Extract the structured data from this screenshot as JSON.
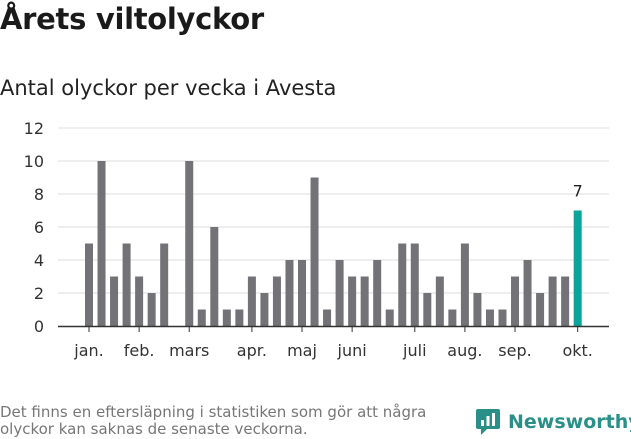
{
  "header": {
    "title": "Årets viltolyckor",
    "subtitle": "Antal olyckor per vecka i Avesta"
  },
  "footer": {
    "note": "Det finns en eftersläpning i statistiken som gör att några olyckor kan saknas de senaste veckorna.",
    "brand": "Newsworthy"
  },
  "colors": {
    "bar": "#737276",
    "highlight": "#0aa59a",
    "grid": "#dddddd",
    "brand": "#2a8f86"
  },
  "chart_data": {
    "type": "bar",
    "title": "",
    "xlabel": "",
    "ylabel": "",
    "ylim": [
      0,
      12
    ],
    "yticks": [
      0,
      2,
      4,
      6,
      8,
      10,
      12
    ],
    "grid": true,
    "weeks": [
      1,
      2,
      3,
      4,
      5,
      6,
      7,
      8,
      9,
      10,
      11,
      12,
      13,
      14,
      15,
      16,
      17,
      18,
      19,
      20,
      21,
      22,
      23,
      24,
      25,
      26,
      27,
      28,
      29,
      30,
      31,
      32,
      33,
      34,
      35,
      36,
      37,
      38,
      39,
      40
    ],
    "values": [
      5,
      10,
      3,
      5,
      3,
      2,
      5,
      0,
      10,
      1,
      6,
      1,
      1,
      3,
      2,
      3,
      4,
      4,
      9,
      1,
      4,
      3,
      3,
      4,
      1,
      5,
      5,
      2,
      3,
      1,
      5,
      2,
      1,
      1,
      3,
      4,
      2,
      3,
      3,
      7
    ],
    "highlight_index": 39,
    "highlight_label": "7",
    "month_labels": [
      {
        "label": "jan.",
        "week": 1
      },
      {
        "label": "feb.",
        "week": 5
      },
      {
        "label": "mars",
        "week": 9
      },
      {
        "label": "apr.",
        "week": 14
      },
      {
        "label": "maj",
        "week": 18
      },
      {
        "label": "juni",
        "week": 22
      },
      {
        "label": "juli",
        "week": 27
      },
      {
        "label": "aug.",
        "week": 31
      },
      {
        "label": "sep.",
        "week": 35
      },
      {
        "label": "okt.",
        "week": 40
      }
    ]
  }
}
